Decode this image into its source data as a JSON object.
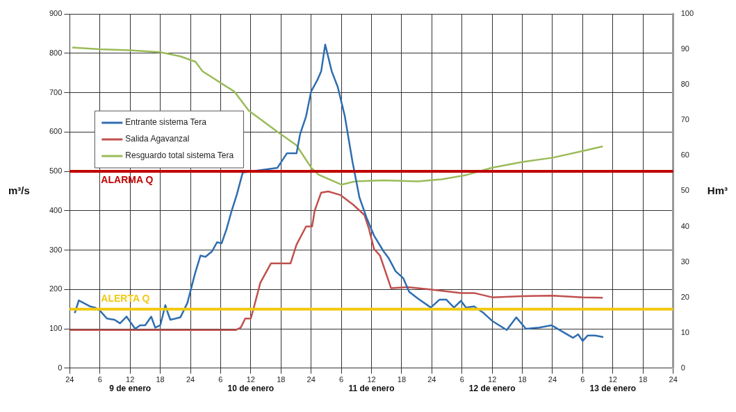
{
  "chart_data": {
    "type": "line",
    "ylabel": "m³/s",
    "y2label": "Hm³",
    "xlim": [
      "--01-09T00:00",
      "--01-14T00:00"
    ],
    "xticks": [
      {
        "value": "--01-09T00:00",
        "label": "24"
      },
      {
        "value": "--01-09T06:00",
        "label": "6"
      },
      {
        "value": "--01-09T12:00",
        "label": "12"
      },
      {
        "value": "--01-09T18:00",
        "label": "18"
      },
      {
        "value": "--01-10T00:00",
        "label": "24"
      },
      {
        "value": "--01-10T06:00",
        "label": "6"
      },
      {
        "value": "--01-10T12:00",
        "label": "12"
      },
      {
        "value": "--01-10T18:00",
        "label": "18"
      },
      {
        "value": "--01-11T00:00",
        "label": "24"
      },
      {
        "value": "--01-11T06:00",
        "label": "6"
      },
      {
        "value": "--01-11T12:00",
        "label": "12"
      },
      {
        "value": "--01-11T18:00",
        "label": "18"
      },
      {
        "value": "--01-12T00:00",
        "label": "24"
      },
      {
        "value": "--01-12T06:00",
        "label": "6"
      },
      {
        "value": "--01-12T12:00",
        "label": "12"
      },
      {
        "value": "--01-12T18:00",
        "label": "18"
      },
      {
        "value": "--01-13T00:00",
        "label": "24"
      },
      {
        "value": "--01-13T06:00",
        "label": "6"
      },
      {
        "value": "--01-13T12:00",
        "label": "12"
      },
      {
        "value": "--01-13T18:00",
        "label": "18"
      },
      {
        "value": "--01-14T00:00",
        "label": "24"
      }
    ],
    "ylim": [
      0,
      900
    ],
    "yticks": [
      0,
      100,
      200,
      300,
      400,
      500,
      600,
      700,
      800,
      900
    ],
    "y2lim": [
      0,
      100
    ],
    "y2ticks": [
      0,
      10,
      20,
      30,
      40,
      50,
      60,
      70,
      80,
      90,
      100
    ],
    "grid": true,
    "legend": "top left",
    "marker": "none",
    "line_style": "solid",
    "series": [
      {
        "name": "Entrante sistema Tera",
        "color": "#2e6db0",
        "x": [
          "--01-09T01:00",
          "--01-09T01:48",
          "--01-09T04:00",
          "--01-09T05:00",
          "--01-09T06:00",
          "--01-09T07:24",
          "--01-09T08:54",
          "--01-09T10:00",
          "--01-09T11:18",
          "--01-09T13:00",
          "--01-09T14:00",
          "--01-09T15:00",
          "--01-09T16:12",
          "--01-09T17:00",
          "--01-09T18:00",
          "--01-09T19:00",
          "--01-09T19:36",
          "--01-09T20:00",
          "--01-09T22:00",
          "--01-09T23:24",
          "--01-10T00:54",
          "--01-10T02:00",
          "--01-10T03:00",
          "--01-10T04:18",
          "--01-10T05:18",
          "--01-10T06:12",
          "--01-10T07:12",
          "--01-10T08:12",
          "--01-10T09:12",
          "--01-10T10:24",
          "--01-10T17:18",
          "--01-10T19:12",
          "--01-10T21:06",
          "--01-10T21:48",
          "--01-10T23:00",
          "--01-11T00:00",
          "--01-11T01:12",
          "--01-11T02:00",
          "--01-11T02:48",
          "--01-11T04:06",
          "--01-11T05:18",
          "--01-11T06:42",
          "--01-11T08:12",
          "--01-11T09:36",
          "--01-11T11:00",
          "--01-11T12:30",
          "--01-11T14:24",
          "--01-11T15:24",
          "--01-11T16:48",
          "--01-11T18:18",
          "--01-11T19:30",
          "--01-11T21:12",
          "--01-11T23:48",
          "--01-12T01:30",
          "--01-12T02:54",
          "--01-12T04:24",
          "--01-12T05:48",
          "--01-12T06:48",
          "--01-12T08:24",
          "--01-12T10:18",
          "--01-12T12:00",
          "--01-12T14:54",
          "--01-12T16:48",
          "--01-12T18:42",
          "--01-12T21:24",
          "--01-12T23:48",
          "--01-13T02:12",
          "--01-13T04:06",
          "--01-13T05:06",
          "--01-13T06:00",
          "--01-13T07:00",
          "--01-13T08:30",
          "--01-13T10:06"
        ],
        "values": [
          140,
          172,
          157,
          154,
          146,
          126,
          123,
          114,
          131,
          100,
          109,
          109,
          131,
          103,
          109,
          160,
          137,
          123,
          129,
          166,
          240,
          286,
          283,
          297,
          320,
          317,
          354,
          400,
          440,
          497,
          509,
          546,
          546,
          594,
          640,
          703,
          731,
          754,
          822,
          754,
          714,
          640,
          526,
          434,
          383,
          337,
          297,
          280,
          246,
          229,
          194,
          177,
          154,
          174,
          174,
          154,
          171,
          154,
          157,
          140,
          120,
          97,
          129,
          100,
          103,
          109,
          91,
          77,
          86,
          69,
          83,
          83,
          79
        ]
      },
      {
        "name": "Salida Agavanzal",
        "color": "#c0504d",
        "x": [
          "--01-09T00:00",
          "--01-09T10:00",
          "--01-09T20:00",
          "--01-10T06:00",
          "--01-10T09:00",
          "--01-10T10:00",
          "--01-10T10:54",
          "--01-10T12:00",
          "--01-10T12:30",
          "--01-10T13:54",
          "--01-10T16:00",
          "--01-10T19:54",
          "--01-10T21:06",
          "--01-10T23:00",
          "--01-11T00:12",
          "--01-11T00:42",
          "--01-11T02:00",
          "--01-11T03:24",
          "--01-11T05:48",
          "--01-11T08:12",
          "--01-11T10:36",
          "--01-11T11:30",
          "--01-11T12:30",
          "--01-11T13:42",
          "--01-11T15:54",
          "--01-11T19:12",
          "--01-11T23:36",
          "--01-12T05:48",
          "--01-12T08:24",
          "--01-12T12:00",
          "--01-12T18:00",
          "--01-13T00:00",
          "--01-13T06:00",
          "--01-13T10:00"
        ],
        "values": [
          97,
          97,
          97,
          97,
          97,
          103,
          126,
          126,
          149,
          217,
          266,
          266,
          314,
          360,
          360,
          400,
          446,
          449,
          440,
          417,
          389,
          354,
          303,
          286,
          203,
          206,
          200,
          191,
          191,
          180,
          183,
          184,
          180,
          179
        ]
      },
      {
        "name": "Resguardo total sistema Tera",
        "color": "#9bbb59",
        "axis": "y2",
        "x": [
          "--01-09T00:30",
          "--01-09T06:00",
          "--01-09T12:00",
          "--01-09T18:00",
          "--01-09T22:00",
          "--01-10T01:00",
          "--01-10T02:24",
          "--01-10T08:42",
          "--01-10T11:36",
          "--01-10T17:18",
          "--01-10T21:06",
          "--01-11T00:00",
          "--01-11T01:30",
          "--01-11T06:00",
          "--01-11T08:42",
          "--01-11T14:24",
          "--01-11T21:12",
          "--01-12T02:00",
          "--01-12T06:48",
          "--01-12T12:00",
          "--01-12T18:00",
          "--01-13T00:00",
          "--01-13T06:00",
          "--01-13T10:00"
        ],
        "values": [
          90.5,
          90,
          89.7,
          89.2,
          88,
          86.5,
          83.8,
          78.1,
          72.7,
          66.7,
          62.9,
          56.6,
          54.6,
          51.8,
          52.7,
          53,
          52.7,
          53.3,
          54.5,
          56.6,
          58.2,
          59.4,
          61.3,
          62.6
        ]
      }
    ],
    "ref_lines": [
      {
        "axis": "y",
        "value": 500,
        "label": "ALARMA Q",
        "color": "#c00000"
      },
      {
        "axis": "y",
        "value": 150,
        "label": "ALERTA Q",
        "color": "#f2c80f"
      }
    ],
    "annotations": [
      "9 de enero",
      "10 de enero",
      "11 de enero",
      "12 de enero",
      "13 de enero"
    ]
  }
}
